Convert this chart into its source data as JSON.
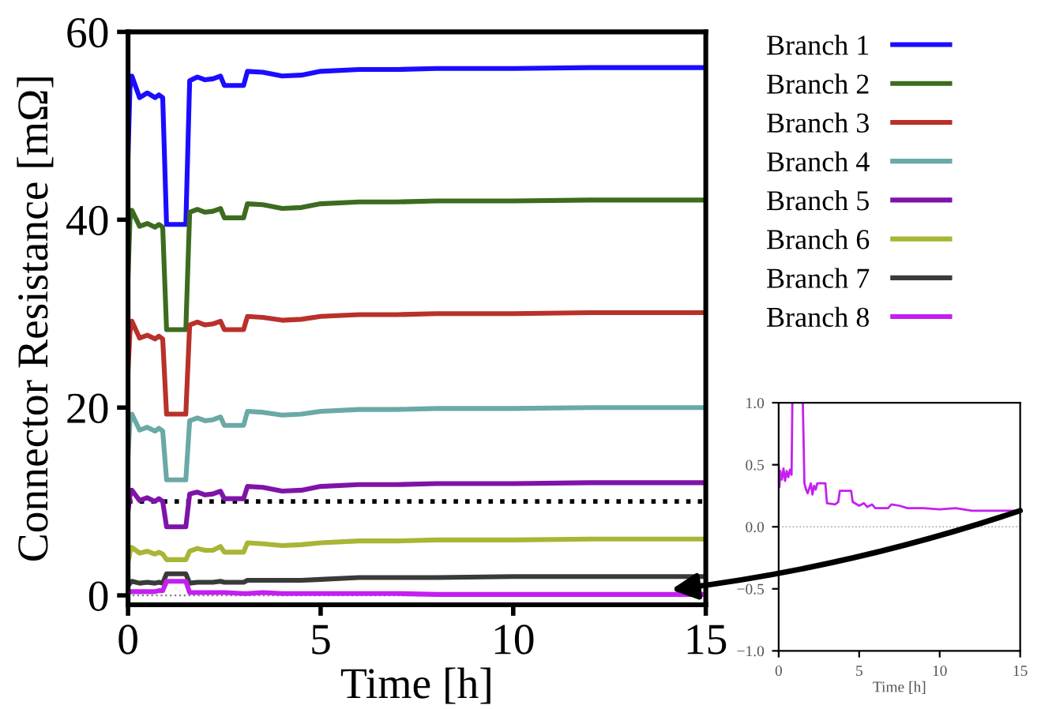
{
  "chart_data": [
    {
      "type": "line",
      "xlabel": "Time [h]",
      "ylabel": "Connector Resistance [mΩ]",
      "x": [
        0,
        0.05,
        0.1,
        0.3,
        0.5,
        0.7,
        0.8,
        0.9,
        1.0,
        1.5,
        1.6,
        1.8,
        2.0,
        2.2,
        2.4,
        2.5,
        3.0,
        3.1,
        3.5,
        4.0,
        4.5,
        5,
        6,
        7,
        8,
        10,
        12,
        15
      ],
      "series": [
        {
          "name": "Branch 1",
          "color": "#1a0dff",
          "values": [
            47,
            54,
            55.3,
            53,
            53.5,
            53,
            53.3,
            53,
            39.5,
            39.5,
            54.8,
            55.2,
            54.9,
            55.0,
            55.3,
            54.3,
            54.3,
            55.8,
            55.7,
            55.3,
            55.4,
            55.8,
            56.0,
            56.0,
            56.1,
            56.1,
            56.2,
            56.2
          ]
        },
        {
          "name": "Branch 2",
          "color": "#3d6b1f",
          "values": [
            34,
            40,
            41,
            39.3,
            39.6,
            39.2,
            39.5,
            39.2,
            28.3,
            28.3,
            40.8,
            41.1,
            40.8,
            40.9,
            41.2,
            40.2,
            40.2,
            41.7,
            41.6,
            41.2,
            41.3,
            41.7,
            41.9,
            41.9,
            42.0,
            42.0,
            42.1,
            42.1
          ]
        },
        {
          "name": "Branch 3",
          "color": "#b8312a",
          "values": [
            24,
            28,
            29.2,
            27.4,
            27.7,
            27.3,
            27.6,
            27.3,
            19.3,
            19.3,
            28.8,
            29.1,
            28.8,
            28.9,
            29.2,
            28.3,
            28.3,
            29.7,
            29.6,
            29.3,
            29.4,
            29.7,
            29.9,
            29.9,
            30.0,
            30.0,
            30.1,
            30.1
          ]
        },
        {
          "name": "Branch 4",
          "color": "#6aa9a6",
          "values": [
            15,
            18.5,
            19.3,
            17.6,
            17.9,
            17.5,
            17.8,
            17.5,
            12.3,
            12.3,
            18.6,
            18.9,
            18.6,
            18.7,
            19.0,
            18.1,
            18.1,
            19.6,
            19.5,
            19.2,
            19.3,
            19.6,
            19.8,
            19.8,
            19.9,
            19.9,
            20.0,
            20.0
          ]
        },
        {
          "name": "Branch 5",
          "color": "#7f13a8",
          "values": [
            9,
            10.6,
            11.2,
            10.1,
            10.4,
            10.0,
            10.3,
            10.0,
            7.3,
            7.3,
            10.8,
            11.0,
            10.7,
            10.8,
            11.1,
            10.3,
            10.3,
            11.6,
            11.5,
            11.1,
            11.2,
            11.6,
            11.8,
            11.8,
            11.9,
            11.9,
            12.0,
            12.0
          ]
        },
        {
          "name": "Branch 6",
          "color": "#a9b535",
          "values": [
            3.5,
            4.6,
            5.1,
            4.5,
            4.7,
            4.4,
            4.6,
            4.4,
            3.8,
            3.8,
            4.7,
            5.0,
            4.8,
            4.8,
            5.2,
            4.6,
            4.6,
            5.6,
            5.5,
            5.3,
            5.4,
            5.6,
            5.8,
            5.8,
            5.9,
            5.9,
            6.0,
            6.0
          ]
        },
        {
          "name": "Branch 7",
          "color": "#3a3a3a",
          "values": [
            1.0,
            1.3,
            1.5,
            1.3,
            1.4,
            1.3,
            1.4,
            1.3,
            2.3,
            2.3,
            1.3,
            1.4,
            1.4,
            1.4,
            1.5,
            1.4,
            1.4,
            1.6,
            1.6,
            1.6,
            1.6,
            1.7,
            1.9,
            1.9,
            1.9,
            2.0,
            2.0,
            2.0
          ]
        },
        {
          "name": "Branch 8",
          "color": "#c41ff0",
          "values": [
            0.3,
            0.4,
            0.4,
            0.4,
            0.4,
            0.4,
            0.5,
            0.5,
            1.5,
            1.5,
            0.3,
            0.3,
            0.3,
            0.3,
            0.3,
            0.3,
            0.2,
            0.2,
            0.3,
            0.2,
            0.2,
            0.2,
            0.2,
            0.2,
            0.1,
            0.1,
            0.1,
            0.1
          ]
        }
      ],
      "xlim": [
        0,
        15
      ],
      "xticks": [
        0,
        5,
        10,
        15
      ],
      "ylim": [
        -1,
        60
      ],
      "yticks": [
        0,
        20,
        40,
        60
      ],
      "ref_lines": [
        {
          "axis": "y",
          "value": 10,
          "color": "#000000",
          "line_style": "dotted"
        },
        {
          "axis": "y",
          "value": 0,
          "color": "#808080",
          "line_style": "dotted"
        }
      ],
      "legend": "right",
      "grid": false
    },
    {
      "type": "line",
      "xlabel": "Time [h]",
      "x": [
        0,
        0.05,
        0.1,
        0.2,
        0.3,
        0.4,
        0.5,
        0.6,
        0.7,
        0.8,
        0.85,
        1.2,
        1.5,
        1.6,
        1.7,
        1.8,
        2.0,
        2.1,
        2.2,
        2.3,
        2.4,
        2.5,
        2.9,
        3.0,
        3.5,
        3.7,
        3.8,
        4.5,
        4.6,
        5.0,
        5.3,
        5.5,
        5.8,
        6.0,
        6.8,
        7.0,
        7.5,
        8.0,
        9.0,
        10.0,
        11.0,
        12.0,
        15.0
      ],
      "series": [
        {
          "color": "#c41ff0",
          "values": [
            0.5,
            0.32,
            0.45,
            0.38,
            0.47,
            0.37,
            0.45,
            0.4,
            0.46,
            0.42,
            1.0,
            null,
            1.0,
            0.35,
            0.3,
            0.27,
            0.35,
            0.26,
            0.33,
            0.3,
            0.35,
            0.35,
            0.35,
            0.19,
            0.18,
            0.2,
            0.29,
            0.29,
            0.2,
            0.17,
            0.19,
            0.16,
            0.18,
            0.15,
            0.15,
            0.18,
            0.17,
            0.15,
            0.15,
            0.14,
            0.15,
            0.13,
            0.13
          ]
        }
      ],
      "xlim": [
        0,
        15
      ],
      "xticks": [
        0,
        5,
        10,
        15
      ],
      "ylim": [
        -1,
        1
      ],
      "yticks": [
        {
          "value": -1,
          "label": "−1.0"
        },
        {
          "value": -0.5,
          "label": "−0.5"
        },
        {
          "value": 0,
          "label": "0.0"
        },
        {
          "value": 0.5,
          "label": "0.5"
        },
        {
          "value": 1,
          "label": "1.0"
        }
      ],
      "ref_lines": [
        {
          "axis": "y",
          "value": 0,
          "color": "#a0a0a0",
          "line_style": "dotted"
        }
      ],
      "grid": false
    }
  ]
}
